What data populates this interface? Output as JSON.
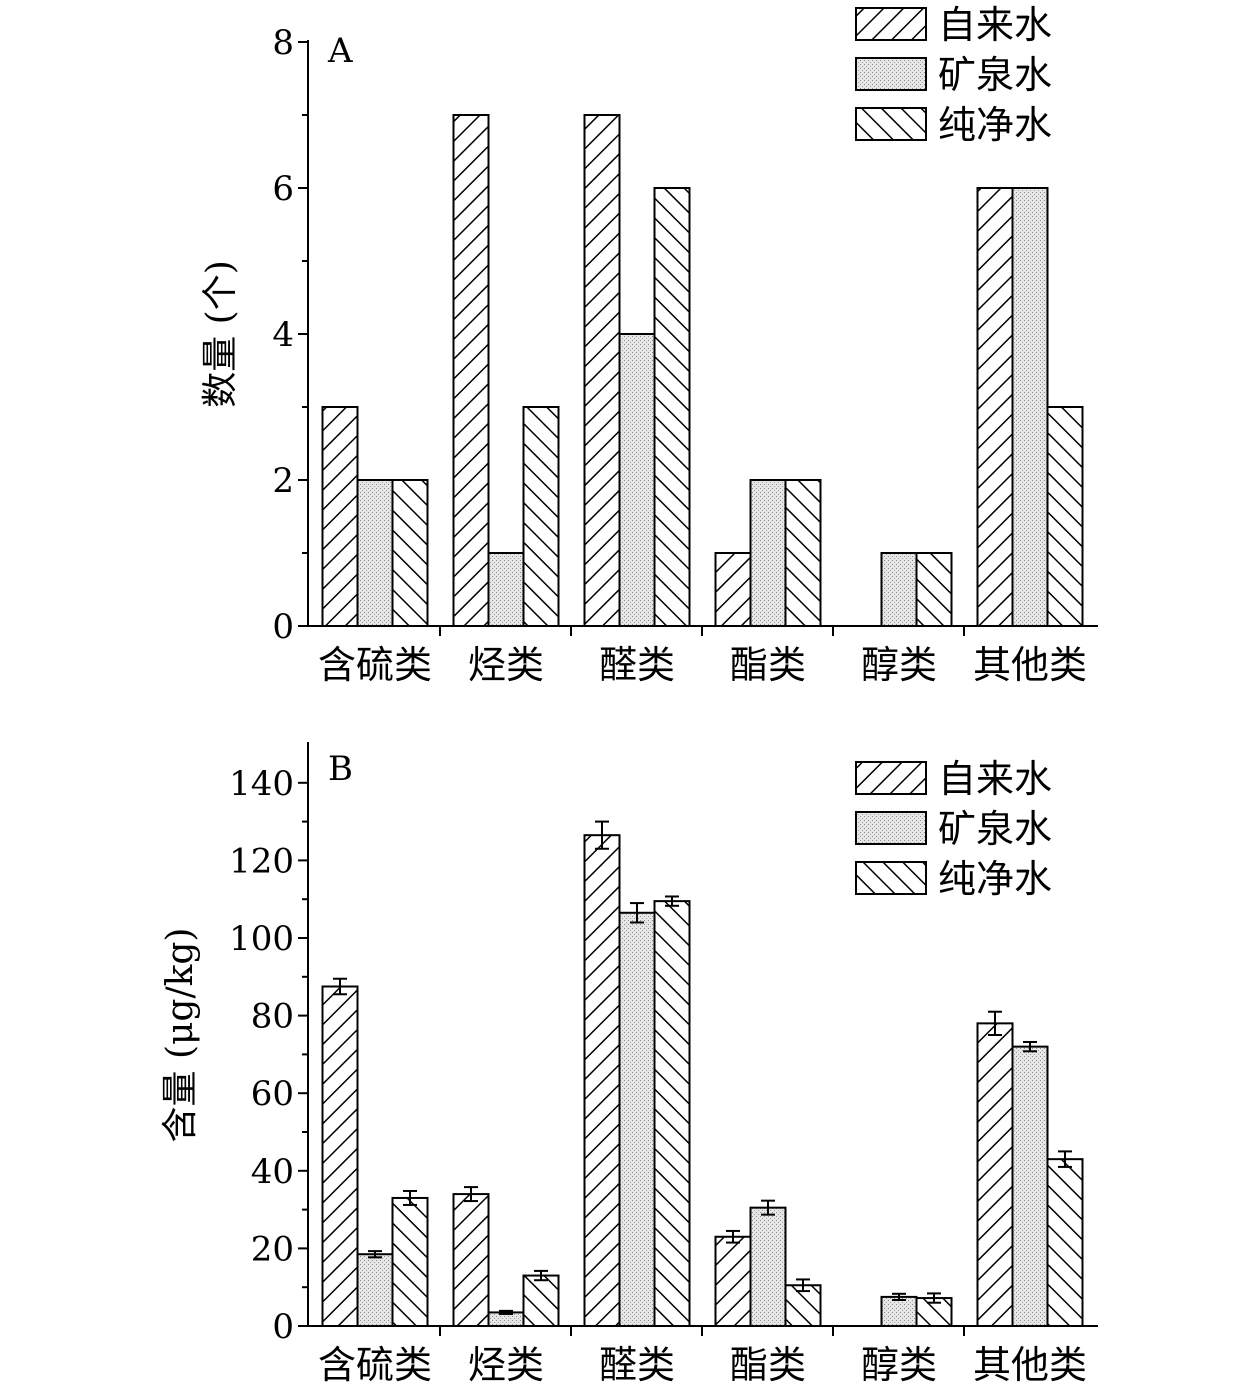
{
  "chart_data": [
    {
      "type": "bar",
      "panel_label": "A",
      "title": "",
      "xlabel": "",
      "ylabel": "数量 (个)",
      "ylim": [
        0,
        8
      ],
      "yticks": [
        0,
        2,
        4,
        6,
        8
      ],
      "categories": [
        "含硫类",
        "烃类",
        "醛类",
        "酯类",
        "醇类",
        "其他类"
      ],
      "legend_position": "top-right",
      "series": [
        {
          "name": "自来水",
          "pattern": "diag-right",
          "values": [
            3,
            7,
            7,
            1,
            0,
            6
          ]
        },
        {
          "name": "矿泉水",
          "pattern": "dots",
          "values": [
            2,
            1,
            4,
            2,
            1,
            6
          ]
        },
        {
          "name": "纯净水",
          "pattern": "diag-left",
          "values": [
            2,
            3,
            6,
            2,
            1,
            3
          ]
        }
      ]
    },
    {
      "type": "bar",
      "panel_label": "B",
      "title": "",
      "xlabel": "",
      "ylabel": "含量 (μg/kg)",
      "ylim": [
        0,
        150
      ],
      "yticks": [
        0,
        20,
        40,
        60,
        80,
        100,
        120,
        140
      ],
      "categories": [
        "含硫类",
        "烃类",
        "醛类",
        "酯类",
        "醇类",
        "其他类"
      ],
      "legend_position": "top-right",
      "series": [
        {
          "name": "自来水",
          "pattern": "diag-right",
          "values": [
            87.5,
            34,
            126.5,
            23,
            0,
            78
          ],
          "errors": [
            2,
            1.8,
            3.5,
            1.5,
            0,
            3
          ]
        },
        {
          "name": "矿泉水",
          "pattern": "dots",
          "values": [
            18.5,
            3.5,
            106.5,
            30.5,
            7.5,
            72
          ],
          "errors": [
            0.8,
            0.4,
            2.5,
            1.8,
            0.8,
            1.2
          ]
        },
        {
          "name": "纯净水",
          "pattern": "diag-left",
          "values": [
            33,
            13,
            109.5,
            10.5,
            7.2,
            43
          ],
          "errors": [
            1.8,
            1.2,
            1.2,
            1.5,
            1.2,
            2
          ]
        }
      ]
    }
  ]
}
